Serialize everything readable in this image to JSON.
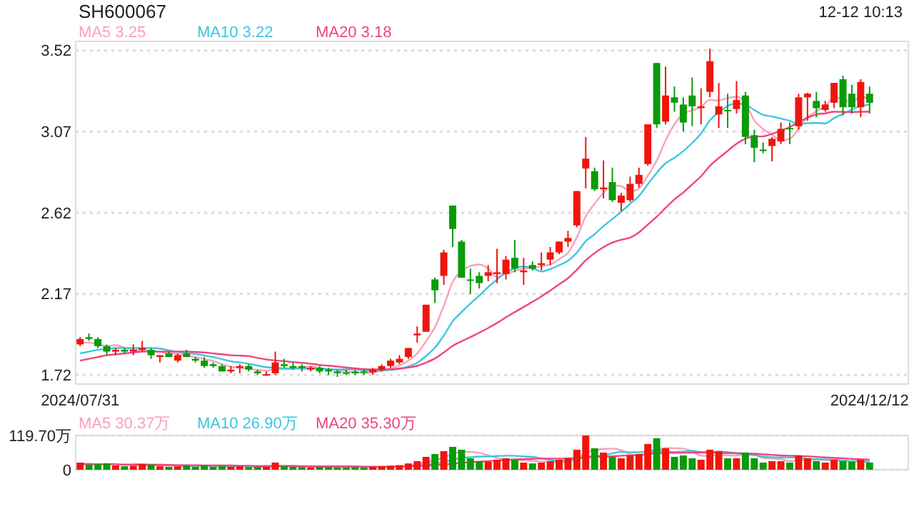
{
  "chart_data": [
    {
      "type": "candlestick",
      "title": "SH600067",
      "subtitle": "12-12 10:13",
      "categories": [
        "2024/07/31",
        null,
        null,
        null,
        null,
        null,
        null,
        null,
        null,
        null,
        null,
        null,
        null,
        null,
        null,
        null,
        null,
        null,
        null,
        null,
        null,
        null,
        null,
        null,
        null,
        null,
        null,
        null,
        null,
        null,
        null,
        null,
        null,
        null,
        null,
        null,
        null,
        null,
        null,
        null,
        null,
        null,
        null,
        null,
        null,
        null,
        null,
        null,
        null,
        null,
        null,
        null,
        null,
        null,
        null,
        null,
        null,
        null,
        null,
        null,
        null,
        null,
        null,
        null,
        null,
        null,
        null,
        null,
        null,
        null,
        null,
        null,
        null,
        null,
        null,
        null,
        null,
        null,
        null,
        null,
        null,
        null,
        null,
        null,
        null,
        null,
        null,
        null,
        null,
        "2024/12/12"
      ],
      "ohlc": [
        [
          1.89,
          1.93,
          1.88,
          1.92
        ],
        [
          1.93,
          1.95,
          1.91,
          1.92
        ],
        [
          1.92,
          1.93,
          1.87,
          1.88
        ],
        [
          1.88,
          1.89,
          1.83,
          1.85
        ],
        [
          1.85,
          1.87,
          1.83,
          1.86
        ],
        [
          1.86,
          1.87,
          1.84,
          1.85
        ],
        [
          1.85,
          1.89,
          1.83,
          1.86
        ],
        [
          1.86,
          1.91,
          1.85,
          1.87
        ],
        [
          1.86,
          1.87,
          1.81,
          1.83
        ],
        [
          1.82,
          1.83,
          1.79,
          1.83
        ],
        [
          1.84,
          1.85,
          1.82,
          1.82
        ],
        [
          1.8,
          1.84,
          1.79,
          1.83
        ],
        [
          1.84,
          1.86,
          1.82,
          1.82
        ],
        [
          1.81,
          1.82,
          1.79,
          1.8
        ],
        [
          1.8,
          1.82,
          1.76,
          1.77
        ],
        [
          1.78,
          1.79,
          1.76,
          1.77
        ],
        [
          1.77,
          1.78,
          1.74,
          1.74
        ],
        [
          1.74,
          1.77,
          1.73,
          1.75
        ],
        [
          1.76,
          1.78,
          1.73,
          1.77
        ],
        [
          1.77,
          1.78,
          1.74,
          1.75
        ],
        [
          1.74,
          1.75,
          1.72,
          1.73
        ],
        [
          1.72,
          1.74,
          1.715,
          1.725
        ],
        [
          1.73,
          1.85,
          1.72,
          1.79
        ],
        [
          1.78,
          1.81,
          1.76,
          1.77
        ],
        [
          1.77,
          1.79,
          1.75,
          1.76
        ],
        [
          1.77,
          1.78,
          1.74,
          1.76
        ],
        [
          1.75,
          1.77,
          1.74,
          1.76
        ],
        [
          1.76,
          1.77,
          1.73,
          1.74
        ],
        [
          1.75,
          1.76,
          1.72,
          1.74
        ],
        [
          1.74,
          1.75,
          1.71,
          1.73
        ],
        [
          1.735,
          1.75,
          1.72,
          1.73
        ],
        [
          1.74,
          1.75,
          1.72,
          1.73
        ],
        [
          1.74,
          1.75,
          1.72,
          1.735
        ],
        [
          1.735,
          1.76,
          1.72,
          1.75
        ],
        [
          1.75,
          1.78,
          1.74,
          1.77
        ],
        [
          1.77,
          1.81,
          1.76,
          1.8
        ],
        [
          1.79,
          1.83,
          1.78,
          1.81
        ],
        [
          1.82,
          1.87,
          1.81,
          1.87
        ],
        [
          1.94,
          1.99,
          1.9,
          1.95
        ],
        [
          1.96,
          2.11,
          1.96,
          2.11
        ],
        [
          2.25,
          2.26,
          2.12,
          2.19
        ],
        [
          2.27,
          2.415,
          2.22,
          2.4
        ],
        [
          2.66,
          2.66,
          2.43,
          2.53
        ],
        [
          2.46,
          2.47,
          2.26,
          2.26
        ],
        [
          2.25,
          2.31,
          2.17,
          2.245
        ],
        [
          2.27,
          2.29,
          2.2,
          2.23
        ],
        [
          2.27,
          2.33,
          2.24,
          2.29
        ],
        [
          2.28,
          2.42,
          2.23,
          2.29
        ],
        [
          2.28,
          2.38,
          2.25,
          2.36
        ],
        [
          2.37,
          2.47,
          2.29,
          2.31
        ],
        [
          2.29,
          2.37,
          2.22,
          2.3
        ],
        [
          2.33,
          2.35,
          2.3,
          2.31
        ],
        [
          2.33,
          2.4,
          2.3,
          2.34
        ],
        [
          2.36,
          2.43,
          2.33,
          2.4
        ],
        [
          2.4,
          2.46,
          2.39,
          2.46
        ],
        [
          2.46,
          2.52,
          2.43,
          2.48
        ],
        [
          2.55,
          2.74,
          2.54,
          2.74
        ],
        [
          2.865,
          3.04,
          2.755,
          2.92
        ],
        [
          2.85,
          2.87,
          2.74,
          2.75
        ],
        [
          2.75,
          2.91,
          2.7,
          2.76
        ],
        [
          2.79,
          2.87,
          2.68,
          2.69
        ],
        [
          2.675,
          2.73,
          2.63,
          2.715
        ],
        [
          2.69,
          2.82,
          2.68,
          2.78
        ],
        [
          2.78,
          2.87,
          2.76,
          2.83
        ],
        [
          2.89,
          3.11,
          2.88,
          3.11
        ],
        [
          3.45,
          3.45,
          3.09,
          3.11
        ],
        [
          3.125,
          3.43,
          3.11,
          3.27
        ],
        [
          3.26,
          3.32,
          3.18,
          3.23
        ],
        [
          3.22,
          3.26,
          3.07,
          3.12
        ],
        [
          3.27,
          3.37,
          3.1,
          3.21
        ],
        [
          3.2,
          3.31,
          3.11,
          3.21
        ],
        [
          3.29,
          3.53,
          3.26,
          3.46
        ],
        [
          3.165,
          3.34,
          3.09,
          3.21
        ],
        [
          3.19,
          3.28,
          3.09,
          3.185
        ],
        [
          3.195,
          3.35,
          3.17,
          3.245
        ],
        [
          3.27,
          3.29,
          3.0,
          3.04
        ],
        [
          3.05,
          3.08,
          2.9,
          2.98
        ],
        [
          2.97,
          3.01,
          2.95,
          2.965
        ],
        [
          2.99,
          3.04,
          2.905,
          3.03
        ],
        [
          3.015,
          3.12,
          3.0,
          3.085
        ],
        [
          3.09,
          3.12,
          3.0,
          3.085
        ],
        [
          3.1,
          3.28,
          3.08,
          3.26
        ],
        [
          3.26,
          3.285,
          3.13,
          3.28
        ],
        [
          3.24,
          3.29,
          3.15,
          3.2
        ],
        [
          3.19,
          3.24,
          3.18,
          3.22
        ],
        [
          3.23,
          3.34,
          3.2,
          3.34
        ],
        [
          3.36,
          3.38,
          3.16,
          3.205
        ],
        [
          3.28,
          3.33,
          3.17,
          3.205
        ],
        [
          3.205,
          3.36,
          3.15,
          3.345
        ],
        [
          3.28,
          3.32,
          3.17,
          3.23
        ]
      ],
      "colors": [
        "#f0150c",
        "#0a9b0a",
        "#0a9b0a",
        "#0a9b0a",
        "#f0150c",
        "#0a9b0a",
        "#f0150c",
        "#f0150c",
        "#0a9b0a",
        "#f0150c",
        "#0a9b0a",
        "#f0150c",
        "#0a9b0a",
        "#0a9b0a",
        "#0a9b0a",
        "#0a9b0a",
        "#0a9b0a",
        "#f0150c",
        "#f0150c",
        "#0a9b0a",
        "#0a9b0a",
        "#f0150c",
        "#f0150c",
        "#0a9b0a",
        "#0a9b0a",
        "#0a9b0a",
        "#f0150c",
        "#0a9b0a",
        "#0a9b0a",
        "#0a9b0a",
        "#0a9b0a",
        "#0a9b0a",
        "#0a9b0a",
        "#f0150c",
        "#f0150c",
        "#f0150c",
        "#f0150c",
        "#f0150c",
        "#f0150c",
        "#f0150c",
        "#0a9b0a",
        "#f0150c",
        "#0a9b0a",
        "#0a9b0a",
        "#0a9b0a",
        "#0a9b0a",
        "#f0150c",
        "#f0150c",
        "#f0150c",
        "#0a9b0a",
        "#f0150c",
        "#0a9b0a",
        "#f0150c",
        "#f0150c",
        "#f0150c",
        "#f0150c",
        "#f0150c",
        "#f0150c",
        "#0a9b0a",
        "#f0150c",
        "#0a9b0a",
        "#f0150c",
        "#f0150c",
        "#f0150c",
        "#f0150c",
        "#0a9b0a",
        "#f0150c",
        "#0a9b0a",
        "#0a9b0a",
        "#0a9b0a",
        "#f0150c",
        "#f0150c",
        "#f0150c",
        "#0a9b0a",
        "#f0150c",
        "#0a9b0a",
        "#0a9b0a",
        "#0a9b0a",
        "#f0150c",
        "#f0150c",
        "#0a9b0a",
        "#f0150c",
        "#f0150c",
        "#0a9b0a",
        "#f0150c",
        "#f0150c",
        "#0a9b0a",
        "#0a9b0a",
        "#f0150c",
        "#0a9b0a"
      ],
      "series": [
        {
          "type": "line",
          "name": "MA5 3.25",
          "color": "#f9a0bc",
          "values": [
            1.9,
            1.9,
            1.89,
            1.88,
            1.886,
            1.872,
            1.86,
            1.858,
            1.854,
            1.848,
            1.842,
            1.836,
            1.826,
            1.82,
            1.808,
            1.798,
            1.78,
            1.766,
            1.76,
            1.756,
            1.748,
            1.745,
            1.753,
            1.753,
            1.755,
            1.761,
            1.768,
            1.758,
            1.752,
            1.746,
            1.74,
            1.734,
            1.733,
            1.735,
            1.743,
            1.757,
            1.773,
            1.8,
            1.84,
            1.908,
            1.986,
            2.104,
            2.236,
            2.298,
            2.325,
            2.333,
            2.311,
            2.263,
            2.283,
            2.296,
            2.31,
            2.314,
            2.324,
            2.332,
            2.362,
            2.398,
            2.484,
            2.6,
            2.67,
            2.73,
            2.772,
            2.767,
            2.739,
            2.755,
            2.825,
            2.909,
            3.02,
            3.11,
            3.168,
            3.188,
            3.208,
            3.246,
            3.242,
            3.256,
            3.263,
            3.229,
            3.133,
            3.084,
            3.052,
            3.021,
            3.03,
            3.086,
            3.149,
            3.183,
            3.209,
            3.26,
            3.249,
            3.234,
            3.263,
            3.25
          ]
        },
        {
          "type": "line",
          "name": "MA10 3.22",
          "color": "#3ec6de",
          "values": [
            1.84,
            1.85,
            1.86,
            1.865,
            1.87,
            1.87,
            1.87,
            1.87,
            1.87,
            1.867,
            1.857,
            1.848,
            1.842,
            1.837,
            1.828,
            1.82,
            1.808,
            1.796,
            1.79,
            1.782,
            1.773,
            1.763,
            1.76,
            1.757,
            1.756,
            1.755,
            1.757,
            1.756,
            1.753,
            1.751,
            1.751,
            1.751,
            1.746,
            1.744,
            1.745,
            1.749,
            1.754,
            1.767,
            1.788,
            1.826,
            1.872,
            1.939,
            2.018,
            2.069,
            2.117,
            2.16,
            2.208,
            2.25,
            2.291,
            2.311,
            2.322,
            2.313,
            2.294,
            2.308,
            2.329,
            2.354,
            2.399,
            2.462,
            2.501,
            2.546,
            2.585,
            2.626,
            2.67,
            2.713,
            2.778,
            2.841,
            2.894,
            2.925,
            2.962,
            3.007,
            3.059,
            3.133,
            3.176,
            3.212,
            3.226,
            3.219,
            3.19,
            3.163,
            3.154,
            3.142,
            3.13,
            3.11,
            3.117,
            3.118,
            3.115,
            3.145,
            3.168,
            3.192,
            3.21,
            3.22
          ]
        },
        {
          "type": "line",
          "name": "MA20 3.18",
          "color": "#f0457c",
          "values": [
            1.8,
            1.81,
            1.82,
            1.83,
            1.835,
            1.84,
            1.845,
            1.85,
            1.85,
            1.85,
            1.85,
            1.85,
            1.85,
            1.848,
            1.845,
            1.84,
            1.835,
            1.83,
            1.828,
            1.825,
            1.815,
            1.806,
            1.801,
            1.797,
            1.792,
            1.788,
            1.783,
            1.776,
            1.772,
            1.767,
            1.762,
            1.757,
            1.753,
            1.751,
            1.751,
            1.752,
            1.756,
            1.762,
            1.771,
            1.789,
            1.812,
            1.845,
            1.882,
            1.907,
            1.931,
            1.955,
            1.981,
            2.009,
            2.04,
            2.069,
            2.097,
            2.126,
            2.156,
            2.189,
            2.223,
            2.257,
            2.304,
            2.356,
            2.396,
            2.429,
            2.454,
            2.47,
            2.482,
            2.511,
            2.554,
            2.598,
            2.647,
            2.694,
            2.732,
            2.777,
            2.822,
            2.88,
            2.923,
            2.963,
            3.002,
            3.03,
            3.042,
            3.044,
            3.058,
            3.075,
            3.095,
            3.122,
            3.147,
            3.165,
            3.171,
            3.18,
            3.179,
            3.178,
            3.18,
            3.18
          ]
        }
      ],
      "ylim": [
        1.67,
        3.57
      ],
      "yticks": [
        1.72,
        2.17,
        2.62,
        3.07,
        3.52
      ],
      "grid": "y",
      "legend": "top left"
    },
    {
      "type": "bar",
      "categories": [
        null,
        null,
        null,
        null,
        null,
        null,
        null,
        null,
        null,
        null,
        null,
        null,
        null,
        null,
        null,
        null,
        null,
        null,
        null,
        null,
        null,
        null,
        null,
        null,
        null,
        null,
        null,
        null,
        null,
        null,
        null,
        null,
        null,
        null,
        null,
        null,
        null,
        null,
        null,
        null,
        null,
        null,
        null,
        null,
        null,
        null,
        null,
        null,
        null,
        null,
        null,
        null,
        null,
        null,
        null,
        null,
        null,
        null,
        null,
        null,
        null,
        null,
        null,
        null,
        null,
        null,
        null,
        null,
        null,
        null,
        null,
        null,
        null,
        null,
        null,
        null,
        null,
        null,
        null,
        null,
        null,
        null,
        null,
        null,
        null,
        null,
        null,
        null,
        null,
        null
      ],
      "values": [
        25,
        18,
        20,
        22,
        15,
        12,
        14,
        20,
        18,
        12,
        10,
        12,
        14,
        10,
        15,
        10,
        12,
        10,
        12,
        9,
        10,
        10,
        25,
        12,
        10,
        9,
        8,
        10,
        9,
        8,
        8,
        9,
        8,
        10,
        12,
        14,
        16,
        22,
        30,
        45,
        55,
        65,
        80,
        70,
        40,
        30,
        28,
        35,
        40,
        35,
        25,
        22,
        25,
        30,
        35,
        40,
        70,
        119.7,
        75,
        60,
        45,
        40,
        50,
        55,
        90,
        110,
        75,
        45,
        50,
        40,
        35,
        70,
        65,
        40,
        40,
        60,
        40,
        25,
        30,
        30,
        25,
        50,
        40,
        30,
        25,
        35,
        30,
        28,
        35,
        25
      ],
      "colors": [
        "#f0150c",
        "#0a9b0a",
        "#0a9b0a",
        "#0a9b0a",
        "#f0150c",
        "#0a9b0a",
        "#f0150c",
        "#f0150c",
        "#0a9b0a",
        "#f0150c",
        "#0a9b0a",
        "#f0150c",
        "#0a9b0a",
        "#0a9b0a",
        "#0a9b0a",
        "#0a9b0a",
        "#0a9b0a",
        "#f0150c",
        "#f0150c",
        "#0a9b0a",
        "#0a9b0a",
        "#f0150c",
        "#f0150c",
        "#0a9b0a",
        "#0a9b0a",
        "#0a9b0a",
        "#f0150c",
        "#0a9b0a",
        "#0a9b0a",
        "#0a9b0a",
        "#0a9b0a",
        "#0a9b0a",
        "#0a9b0a",
        "#f0150c",
        "#f0150c",
        "#f0150c",
        "#f0150c",
        "#f0150c",
        "#f0150c",
        "#f0150c",
        "#0a9b0a",
        "#f0150c",
        "#0a9b0a",
        "#0a9b0a",
        "#0a9b0a",
        "#0a9b0a",
        "#f0150c",
        "#f0150c",
        "#f0150c",
        "#0a9b0a",
        "#f0150c",
        "#0a9b0a",
        "#f0150c",
        "#f0150c",
        "#f0150c",
        "#f0150c",
        "#f0150c",
        "#f0150c",
        "#0a9b0a",
        "#f0150c",
        "#0a9b0a",
        "#f0150c",
        "#f0150c",
        "#f0150c",
        "#f0150c",
        "#0a9b0a",
        "#f0150c",
        "#0a9b0a",
        "#0a9b0a",
        "#0a9b0a",
        "#f0150c",
        "#f0150c",
        "#f0150c",
        "#0a9b0a",
        "#f0150c",
        "#0a9b0a",
        "#0a9b0a",
        "#0a9b0a",
        "#f0150c",
        "#f0150c",
        "#0a9b0a",
        "#f0150c",
        "#f0150c",
        "#0a9b0a",
        "#f0150c",
        "#f0150c",
        "#0a9b0a",
        "#0a9b0a",
        "#f0150c",
        "#0a9b0a"
      ],
      "series": [
        {
          "type": "line",
          "name": "MA5 30.37万",
          "color": "#f9a0bc",
          "values": [
            20,
            20,
            20,
            20,
            20,
            17,
            17,
            17,
            17,
            15,
            15,
            14,
            13,
            12,
            13,
            12,
            12,
            11,
            12,
            11,
            11,
            10,
            13,
            13,
            13,
            13,
            13,
            10,
            9,
            9,
            9,
            9,
            8,
            9,
            9,
            11,
            12,
            15,
            19,
            25,
            33,
            43,
            55,
            63,
            62,
            59,
            50,
            41,
            35,
            34,
            33,
            31,
            29,
            27,
            27,
            30,
            40,
            59,
            68,
            73,
            74,
            68,
            54,
            50,
            56,
            69,
            76,
            75,
            74,
            64,
            49,
            48,
            52,
            50,
            50,
            56,
            53,
            41,
            39,
            37,
            30,
            32,
            35,
            35,
            34,
            36,
            32,
            30,
            31,
            30
          ]
        },
        {
          "type": "line",
          "name": "MA10 26.90万",
          "color": "#3ec6de",
          "values": [
            null,
            null,
            null,
            null,
            null,
            null,
            18,
            18,
            18,
            18,
            16,
            15,
            15,
            14,
            14,
            14,
            13,
            12,
            12,
            12,
            12,
            11,
            12,
            12,
            12,
            12,
            12,
            12,
            11,
            11,
            11,
            11,
            10,
            9,
            9,
            10,
            null,
            null,
            14,
            17,
            22,
            27,
            35,
            41,
            44,
            46,
            46,
            48,
            49,
            49,
            46,
            45,
            40,
            34,
            31,
            32,
            36,
            44,
            47,
            50,
            57,
            63,
            61,
            61,
            65,
            68,
            65,
            62,
            64,
            66,
            62,
            62,
            63,
            62,
            57,
            53,
            51,
            46,
            44,
            43,
            43,
            42,
            38,
            37,
            36,
            33,
            31,
            30,
            28,
            27
          ]
        },
        {
          "type": "line",
          "name": "MA20 35.30万",
          "color": "#f0457c",
          "values": [
            20,
            20,
            19,
            19,
            19,
            18,
            18,
            18,
            17,
            17,
            17,
            16,
            16,
            16,
            15,
            15,
            15,
            15,
            14,
            14,
            13,
            13,
            13,
            13,
            13,
            12,
            12,
            12,
            12,
            12,
            12,
            12,
            11,
            11,
            11,
            11,
            11,
            12,
            13,
            14,
            16,
            18,
            21,
            24,
            26,
            28,
            30,
            32,
            34,
            36,
            37,
            38,
            39,
            39,
            39,
            40,
            41,
            44,
            45,
            46,
            47,
            49,
            50,
            52,
            55,
            58,
            59,
            59,
            59,
            60,
            60,
            60,
            59,
            58,
            58,
            57,
            56,
            54,
            52,
            50,
            49,
            48,
            47,
            45,
            43,
            41,
            40,
            38,
            37,
            35
          ]
        }
      ],
      "ylim": [
        0,
        119.7
      ],
      "yticks": [
        0,
        {
          "value": 119.7,
          "label": "119.70万"
        }
      ],
      "grid": "y",
      "legend": "top left",
      "tick_labels": "y"
    }
  ]
}
